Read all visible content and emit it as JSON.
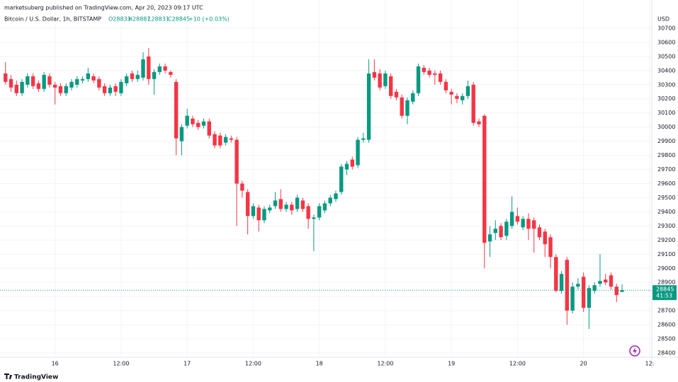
{
  "publish_note": "marketsuberg published on TradingView.com, Apr 20, 2023 09:17 UTC",
  "footer": "TradingView",
  "chart_data": {
    "type": "candlestick",
    "title": "Bitcoin / U.S. Dollar, 1h, BITSTAMP",
    "legend_values": {
      "open": "O28833",
      "high": "H28887",
      "low": "L28831",
      "close": "C28845",
      "change": "+10 (+0.03%)"
    },
    "y_axis_label": "USD",
    "up_color": "#089981",
    "down_color": "#f23645",
    "candles": [
      [
        30380,
        30460,
        30300,
        30320
      ],
      [
        30340,
        30370,
        30250,
        30280
      ],
      [
        30300,
        30330,
        30220,
        30240
      ],
      [
        30240,
        30340,
        30220,
        30320
      ],
      [
        30300,
        30380,
        30280,
        30360
      ],
      [
        30360,
        30380,
        30270,
        30290
      ],
      [
        30310,
        30330,
        30250,
        30270
      ],
      [
        30270,
        30390,
        30250,
        30370
      ],
      [
        30360,
        30380,
        30280,
        30300
      ],
      [
        30300,
        30320,
        30160,
        30280
      ],
      [
        30290,
        30310,
        30220,
        30240
      ],
      [
        30240,
        30310,
        30220,
        30290
      ],
      [
        30280,
        30340,
        30260,
        30320
      ],
      [
        30300,
        30360,
        30280,
        30340
      ],
      [
        30330,
        30360,
        30310,
        30340
      ],
      [
        30340,
        30420,
        30320,
        30380
      ],
      [
        30360,
        30380,
        30310,
        30330
      ],
      [
        30340,
        30360,
        30260,
        30280
      ],
      [
        30290,
        30310,
        30220,
        30240
      ],
      [
        30240,
        30300,
        30220,
        30280
      ],
      [
        30290,
        30310,
        30220,
        30250
      ],
      [
        30240,
        30340,
        30220,
        30320
      ],
      [
        30310,
        30380,
        30290,
        30360
      ],
      [
        30380,
        30400,
        30320,
        30340
      ],
      [
        30340,
        30400,
        30320,
        30370
      ],
      [
        30350,
        30530,
        30330,
        30480
      ],
      [
        30500,
        30560,
        30300,
        30340
      ],
      [
        30340,
        30410,
        30230,
        30390
      ],
      [
        30390,
        30450,
        30370,
        30430
      ],
      [
        30430,
        30450,
        30380,
        30400
      ],
      [
        30390,
        30400,
        30350,
        30370
      ],
      [
        30320,
        30340,
        29800,
        29920
      ],
      [
        29900,
        30020,
        29800,
        30000
      ],
      [
        30010,
        30130,
        29990,
        30080
      ],
      [
        30060,
        30080,
        30000,
        30020
      ],
      [
        30030,
        30050,
        29980,
        30000
      ],
      [
        30010,
        30060,
        29990,
        30040
      ],
      [
        30040,
        30060,
        29920,
        29940
      ],
      [
        29950,
        29970,
        29850,
        29870
      ],
      [
        29940,
        29960,
        29850,
        29870
      ],
      [
        29890,
        29950,
        29870,
        29930
      ],
      [
        29920,
        29940,
        29890,
        29910
      ],
      [
        29910,
        29930,
        29300,
        29600
      ],
      [
        29600,
        29620,
        29500,
        29550
      ],
      [
        29540,
        29560,
        29240,
        29370
      ],
      [
        29370,
        29460,
        29350,
        29440
      ],
      [
        29430,
        29450,
        29260,
        29340
      ],
      [
        29340,
        29440,
        29320,
        29420
      ],
      [
        29410,
        29450,
        29390,
        29430
      ],
      [
        29440,
        29540,
        29420,
        29480
      ],
      [
        29490,
        29560,
        29400,
        29420
      ],
      [
        29420,
        29470,
        29400,
        29450
      ],
      [
        29450,
        29470,
        29380,
        29410
      ],
      [
        29420,
        29520,
        29400,
        29500
      ],
      [
        29480,
        29500,
        29400,
        29420
      ],
      [
        29440,
        29460,
        29280,
        29350
      ],
      [
        29350,
        29380,
        29120,
        29360
      ],
      [
        29360,
        29460,
        29340,
        29440
      ],
      [
        29410,
        29480,
        29390,
        29460
      ],
      [
        29460,
        29520,
        29440,
        29500
      ],
      [
        29490,
        29550,
        29470,
        29530
      ],
      [
        29540,
        29740,
        29520,
        29720
      ],
      [
        29700,
        29760,
        29660,
        29740
      ],
      [
        29770,
        29790,
        29700,
        29720
      ],
      [
        29730,
        29930,
        29710,
        29910
      ],
      [
        29910,
        29960,
        29890,
        29920
      ],
      [
        29910,
        30480,
        29890,
        30380
      ],
      [
        30390,
        30480,
        30330,
        30350
      ],
      [
        30380,
        30410,
        30260,
        30280
      ],
      [
        30290,
        30400,
        30270,
        30380
      ],
      [
        30360,
        30380,
        30200,
        30220
      ],
      [
        30250,
        30270,
        30190,
        30210
      ],
      [
        30210,
        30230,
        30060,
        30080
      ],
      [
        30080,
        30210,
        30020,
        30190
      ],
      [
        30180,
        30260,
        30160,
        30240
      ],
      [
        30240,
        30450,
        30220,
        30430
      ],
      [
        30420,
        30440,
        30370,
        30390
      ],
      [
        30400,
        30420,
        30350,
        30370
      ],
      [
        30380,
        30400,
        30300,
        30370
      ],
      [
        30380,
        30400,
        30300,
        30320
      ],
      [
        30320,
        30340,
        30240,
        30260
      ],
      [
        30250,
        30270,
        30160,
        30230
      ],
      [
        30220,
        30240,
        30170,
        30200
      ],
      [
        30190,
        30240,
        30160,
        30220
      ],
      [
        30220,
        30330,
        30200,
        30290
      ],
      [
        30300,
        30320,
        30010,
        30030
      ],
      [
        30040,
        30060,
        30000,
        30020
      ],
      [
        30080,
        30090,
        29000,
        29180
      ],
      [
        29190,
        29300,
        29080,
        29240
      ],
      [
        29250,
        29340,
        29200,
        29280
      ],
      [
        29300,
        29320,
        29200,
        29220
      ],
      [
        29230,
        29350,
        29200,
        29330
      ],
      [
        29300,
        29510,
        29280,
        29400
      ],
      [
        29370,
        29430,
        29310,
        29330
      ],
      [
        29290,
        29370,
        29270,
        29350
      ],
      [
        29350,
        29390,
        29200,
        29280
      ],
      [
        29340,
        29360,
        29110,
        29280
      ],
      [
        29290,
        29310,
        29200,
        29220
      ],
      [
        29260,
        29280,
        29080,
        29170
      ],
      [
        29220,
        29240,
        29000,
        29080
      ],
      [
        29080,
        29100,
        28830,
        28840
      ],
      [
        28840,
        28980,
        28820,
        28960
      ],
      [
        29060,
        29080,
        28600,
        28700
      ],
      [
        28700,
        28900,
        28680,
        28870
      ],
      [
        28870,
        28930,
        28850,
        28890
      ],
      [
        28940,
        28970,
        28690,
        28720
      ],
      [
        28720,
        28880,
        28570,
        28860
      ],
      [
        28840,
        28900,
        28820,
        28880
      ],
      [
        28890,
        29100,
        28870,
        28910
      ],
      [
        28920,
        28960,
        28880,
        28900
      ],
      [
        28950,
        28970,
        28850,
        28870
      ],
      [
        28870,
        28890,
        28760,
        28810
      ],
      [
        28833,
        28887,
        28831,
        28845
      ]
    ],
    "last_price": 28845,
    "countdown": "41:53",
    "xlim": [
      -1,
      117.4
    ],
    "xticks": [
      {
        "value": 9,
        "label": "16"
      },
      {
        "value": 21,
        "label": "12:00"
      },
      {
        "value": 33,
        "label": "17"
      },
      {
        "value": 45,
        "label": "12:00"
      },
      {
        "value": 57,
        "label": "18"
      },
      {
        "value": 69,
        "label": "12:00"
      },
      {
        "value": 81,
        "label": "19"
      },
      {
        "value": 93,
        "label": "12:00"
      },
      {
        "value": 105,
        "label": "20"
      },
      {
        "value": 117,
        "label": "12:"
      }
    ],
    "ylim": [
      28345,
      30900
    ],
    "yticks": [
      28400,
      28500,
      28600,
      28700,
      28800,
      28900,
      29000,
      29100,
      29200,
      29300,
      29400,
      29500,
      29600,
      29700,
      29800,
      29900,
      30000,
      30100,
      30200,
      30300,
      30400,
      30500,
      30600,
      30700
    ],
    "grid": true
  }
}
